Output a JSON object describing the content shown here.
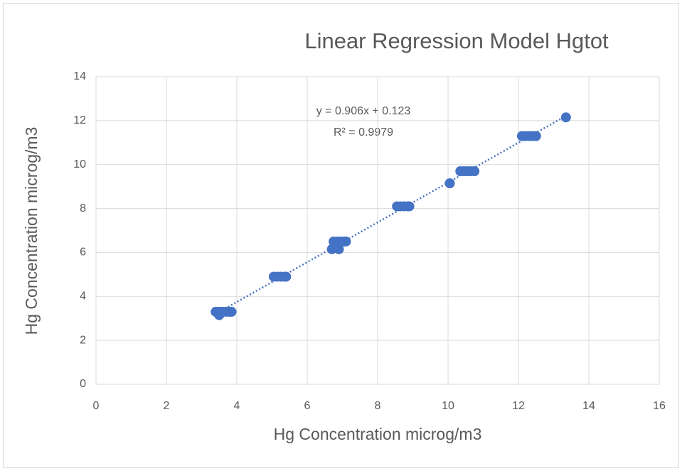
{
  "chart_data": {
    "type": "scatter",
    "title": "Linear Regression Model Hgtot",
    "x_label": "Hg Concentration microg/m3",
    "y_label": "Hg Concentration microg/m3",
    "x": [
      3.4,
      3.5,
      3.6,
      3.7,
      3.8,
      3.85,
      3.5,
      5.05,
      5.15,
      5.25,
      5.35,
      5.4,
      6.7,
      6.9,
      6.75,
      6.85,
      6.95,
      7.05,
      7.1,
      8.55,
      8.65,
      8.75,
      8.85,
      8.9,
      10.05,
      10.35,
      10.45,
      10.55,
      10.65,
      10.75,
      12.1,
      12.2,
      12.3,
      12.4,
      12.5,
      13.35
    ],
    "values": [
      3.3,
      3.3,
      3.3,
      3.3,
      3.3,
      3.3,
      3.15,
      4.9,
      4.9,
      4.9,
      4.9,
      4.9,
      6.15,
      6.15,
      6.5,
      6.5,
      6.5,
      6.5,
      6.5,
      8.1,
      8.1,
      8.1,
      8.1,
      8.1,
      9.15,
      9.7,
      9.7,
      9.7,
      9.7,
      9.7,
      11.3,
      11.3,
      11.3,
      11.3,
      11.3,
      12.15
    ],
    "color": "#4472c4",
    "trendline": {
      "equation": "y = 0.906x + 0.123",
      "r2": "R² = 0.9979",
      "slope": 0.906,
      "intercept": 0.123
    },
    "xlim": [
      0,
      16
    ],
    "xticks": [
      0,
      2,
      4,
      6,
      8,
      10,
      12,
      14,
      16
    ],
    "ylim": [
      0,
      14
    ],
    "yticks": [
      0,
      2,
      4,
      6,
      8,
      10,
      12,
      14
    ],
    "grid": true
  }
}
